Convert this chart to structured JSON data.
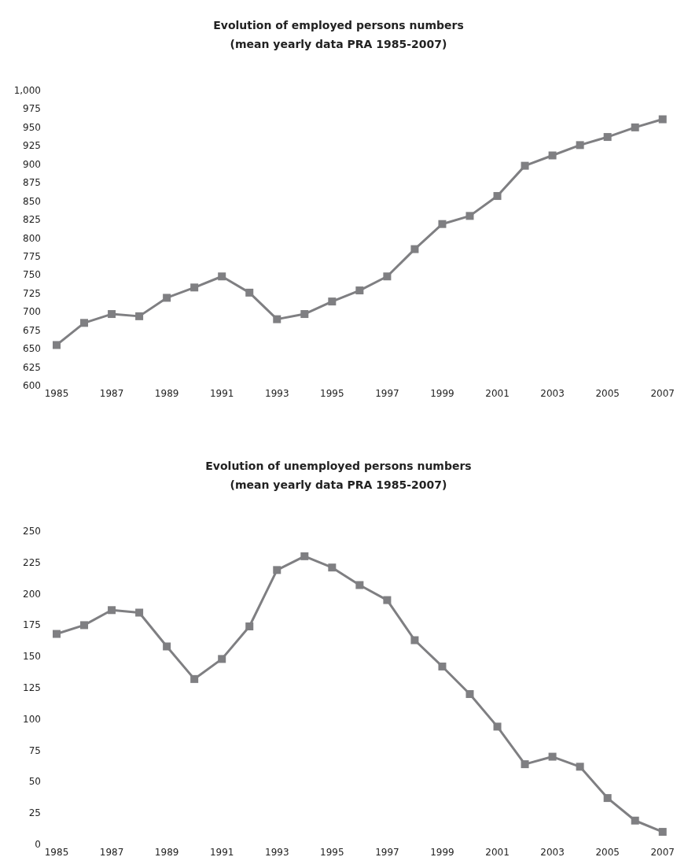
{
  "chart_data": [
    {
      "type": "line",
      "title": "Evolution of employed persons numbers",
      "subtitle": "(mean yearly data PRA 1985-2007)",
      "categories": [
        "1985",
        null,
        "1987",
        null,
        "1989",
        null,
        "1991",
        null,
        "1993",
        null,
        "1995",
        null,
        "1997",
        null,
        "1999",
        null,
        "2001",
        null,
        "2003",
        null,
        "2005",
        null,
        "2007"
      ],
      "series": [
        {
          "color": "#7f7f82",
          "values": [
            655,
            685,
            697,
            694,
            719,
            733,
            748,
            726,
            690,
            697,
            714,
            729,
            748,
            785,
            819,
            830,
            857,
            898,
            912,
            926,
            937,
            950,
            961
          ]
        }
      ],
      "ylim": [
        600,
        1000
      ],
      "yticks": [
        600,
        625,
        650,
        675,
        700,
        725,
        750,
        775,
        800,
        825,
        850,
        875,
        900,
        925,
        950,
        975,
        {
          "value": 1000,
          "label": "1,000"
        }
      ],
      "grid": false,
      "marker": "square",
      "line_style": "solid"
    },
    {
      "type": "line",
      "title": "Evolution of unemployed persons numbers",
      "subtitle": "(mean yearly data PRA 1985-2007)",
      "categories": [
        "1985",
        null,
        "1987",
        null,
        "1989",
        null,
        "1991",
        null,
        "1993",
        null,
        "1995",
        null,
        "1997",
        null,
        "1999",
        null,
        "2001",
        null,
        "2003",
        null,
        "2005",
        null,
        "2007"
      ],
      "series": [
        {
          "color": "#7f7f82",
          "values": [
            168,
            175,
            187,
            185,
            158,
            132,
            148,
            174,
            219,
            230,
            221,
            207,
            195,
            163,
            142,
            120,
            94,
            64,
            70,
            62,
            37,
            19,
            10
          ]
        }
      ],
      "ylim": [
        0,
        250
      ],
      "yticks": [
        0,
        25,
        50,
        75,
        100,
        125,
        150,
        175,
        200,
        225,
        250
      ],
      "grid": false,
      "marker": "square",
      "line_style": "solid"
    }
  ]
}
